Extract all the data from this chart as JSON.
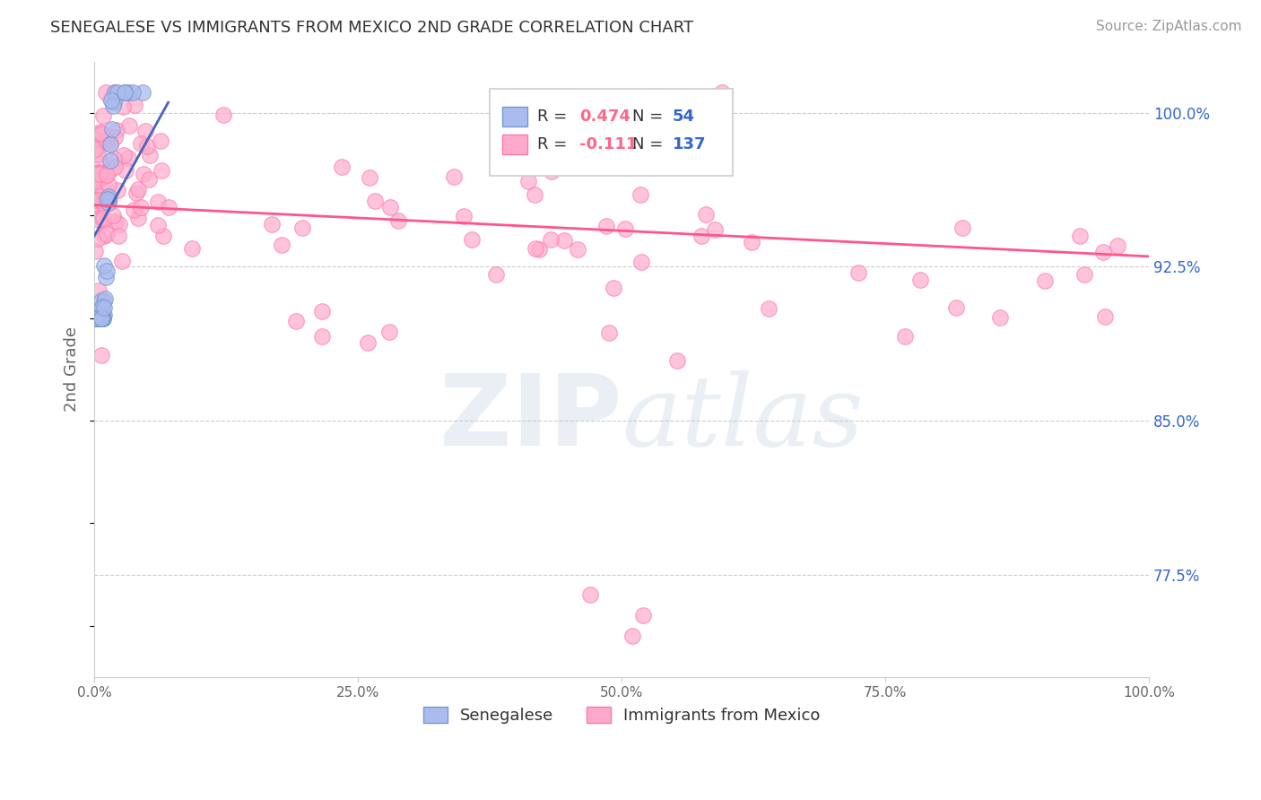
{
  "title": "SENEGALESE VS IMMIGRANTS FROM MEXICO 2ND GRADE CORRELATION CHART",
  "source_text": "Source: ZipAtlas.com",
  "ylabel": "2nd Grade",
  "watermark_ZIP": "ZIP",
  "watermark_atlas": "atlas",
  "xlim": [
    0.0,
    1.0
  ],
  "ylim": [
    0.725,
    1.025
  ],
  "yticks": [
    0.775,
    0.85,
    0.925,
    1.0
  ],
  "ytick_labels": [
    "77.5%",
    "85.0%",
    "92.5%",
    "100.0%"
  ],
  "xticks": [
    0.0,
    0.25,
    0.5,
    0.75,
    1.0
  ],
  "xtick_labels": [
    "0.0%",
    "25.0%",
    "50.0%",
    "75.0%",
    "100.0%"
  ],
  "blue_R": 0.474,
  "blue_N": 54,
  "pink_R": -0.111,
  "pink_N": 137,
  "blue_color": "#aabbee",
  "pink_color": "#ffaacc",
  "blue_edge_color": "#7799cc",
  "pink_edge_color": "#ff77aa",
  "blue_line_color": "#4466bb",
  "pink_line_color": "#ff5588",
  "legend_label_blue": "Senegalese",
  "legend_label_pink": "Immigrants from Mexico",
  "background_color": "#ffffff",
  "grid_color": "#cccccc",
  "title_color": "#333333",
  "source_color": "#999999",
  "R_color": "#ff6688",
  "N_color": "#3366cc",
  "ylabel_color": "#666666",
  "ytick_color": "#3366cc",
  "xtick_color": "#666666"
}
